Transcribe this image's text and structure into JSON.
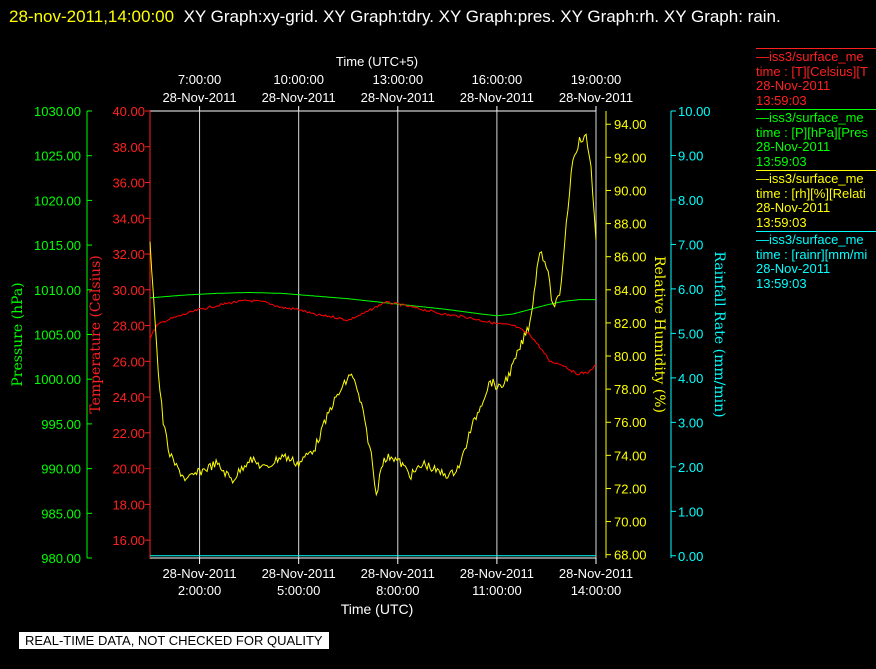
{
  "header": {
    "timestamp": "28-nov-2011,14:00:00",
    "graphs": "XY Graph:xy-grid.  XY Graph:tdry.  XY Graph:pres.  XY Graph:rh.  XY Graph: rain."
  },
  "footer": {
    "quality_note": "REAL-TIME DATA, NOT CHECKED FOR QUALITY"
  },
  "colors": {
    "pressure": "#00ff00",
    "temperature": "#ff0000",
    "humidity": "#ffff00",
    "rainfall": "#00ffff",
    "grid": "#ffffff"
  },
  "legend": [
    {
      "lines": [
        "—iss3/surface_me",
        "time : [T][Celsius][T",
        "28-Nov-2011",
        "13:59:03"
      ],
      "color": "#ff2020"
    },
    {
      "lines": [
        "—iss3/surface_me",
        "time : [P][hPa][Pres",
        "28-Nov-2011",
        "13:59:03"
      ],
      "color": "#00ff00"
    },
    {
      "lines": [
        "—iss3/surface_me",
        "time : [rh][%][Relati",
        "28-Nov-2011",
        "13:59:03"
      ],
      "color": "#ffff00"
    },
    {
      "lines": [
        "—iss3/surface_me",
        "time : [rainr][mm/mi",
        "28-Nov-2011",
        "13:59:03"
      ],
      "color": "#00ffff"
    }
  ],
  "chart_data": {
    "type": "line",
    "xlabel_bottom": "Time (UTC)",
    "xlabel_top": "Time (UTC+5)",
    "xlim_hours_utc": [
      0.5,
      14.0
    ],
    "bottom_ticks": [
      {
        "hour": 2,
        "date": "28-Nov-2011",
        "time": "2:00:00"
      },
      {
        "hour": 5,
        "date": "28-Nov-2011",
        "time": "5:00:00"
      },
      {
        "hour": 8,
        "date": "28-Nov-2011",
        "time": "8:00:00"
      },
      {
        "hour": 11,
        "date": "28-Nov-2011",
        "time": "11:00:00"
      },
      {
        "hour": 14,
        "date": "28-Nov-2011",
        "time": "14:00:00"
      }
    ],
    "top_ticks": [
      {
        "hour": 2,
        "time": "7:00:00",
        "date": "28-Nov-2011"
      },
      {
        "hour": 5,
        "time": "10:00:00",
        "date": "28-Nov-2011"
      },
      {
        "hour": 8,
        "time": "13:00:00",
        "date": "28-Nov-2011"
      },
      {
        "hour": 11,
        "time": "16:00:00",
        "date": "28-Nov-2011"
      },
      {
        "hour": 14,
        "time": "19:00:00",
        "date": "28-Nov-2011"
      }
    ],
    "axes": {
      "pressure": {
        "label": "Pressure (hPa)",
        "ylim": [
          980,
          1030
        ],
        "ticks": [
          "980.00",
          "985.00",
          "990.00",
          "995.00",
          "1000.00",
          "1005.00",
          "1010.00",
          "1015.00",
          "1020.00",
          "1025.00",
          "1030.00"
        ]
      },
      "temperature": {
        "label": "Temperature (Celsius)",
        "ylim": [
          15,
          40
        ],
        "ticks": [
          "16.00",
          "18.00",
          "20.00",
          "22.00",
          "24.00",
          "26.00",
          "28.00",
          "30.00",
          "32.00",
          "34.00",
          "36.00",
          "38.00",
          "40.00"
        ]
      },
      "humidity": {
        "label": "Relative Humidity (%)",
        "ylim": [
          67.8,
          94.8
        ],
        "ticks": [
          "68.00",
          "70.00",
          "72.00",
          "74.00",
          "76.00",
          "78.00",
          "80.00",
          "82.00",
          "84.00",
          "86.00",
          "88.00",
          "90.00",
          "92.00",
          "94.00"
        ]
      },
      "rainfall": {
        "label": "Rainfall Rate (mm/min)",
        "ylim": [
          -0.05,
          10.0
        ],
        "ticks": [
          "0.00",
          "1.00",
          "2.00",
          "3.00",
          "4.00",
          "5.00",
          "6.00",
          "7.00",
          "8.00",
          "9.00",
          "10.00"
        ]
      }
    },
    "series": [
      {
        "name": "Pressure",
        "axis": "pressure",
        "x": [
          0.5,
          1.5,
          2.5,
          3.5,
          4.5,
          5.5,
          6.5,
          7.5,
          8.5,
          9.5,
          10.5,
          11.0,
          11.5,
          12.0,
          12.5,
          13.0,
          13.5,
          14.0
        ],
        "y": [
          1009.1,
          1009.4,
          1009.6,
          1009.7,
          1009.6,
          1009.3,
          1009.0,
          1008.6,
          1008.2,
          1007.8,
          1007.3,
          1007.1,
          1007.3,
          1007.8,
          1008.3,
          1008.7,
          1008.9,
          1008.9
        ]
      },
      {
        "name": "Temperature",
        "axis": "temperature",
        "x": [
          0.5,
          0.7,
          1.0,
          1.5,
          2.0,
          2.5,
          3.0,
          3.5,
          4.0,
          4.5,
          5.0,
          5.5,
          6.0,
          6.5,
          7.0,
          7.3,
          7.6,
          8.0,
          8.5,
          9.0,
          9.5,
          10.0,
          10.5,
          11.0,
          11.5,
          12.0,
          12.3,
          12.6,
          13.0,
          13.4,
          13.8,
          14.0
        ],
        "y": [
          27.3,
          28.0,
          28.3,
          28.6,
          28.9,
          29.1,
          29.3,
          29.4,
          29.3,
          29.0,
          28.9,
          28.6,
          28.5,
          28.3,
          28.7,
          29.0,
          29.3,
          29.2,
          29.0,
          28.8,
          28.6,
          28.5,
          28.3,
          28.1,
          28.0,
          27.5,
          26.8,
          26.0,
          25.8,
          25.3,
          25.4,
          25.8
        ]
      },
      {
        "name": "Relative Humidity",
        "axis": "humidity",
        "x": [
          0.5,
          0.6,
          0.75,
          0.9,
          1.1,
          1.3,
          1.6,
          2.0,
          2.5,
          3.0,
          3.5,
          4.0,
          4.5,
          5.0,
          5.5,
          6.0,
          6.3,
          6.6,
          6.9,
          7.1,
          7.2,
          7.35,
          7.5,
          7.8,
          8.1,
          8.4,
          8.8,
          9.2,
          9.6,
          9.9,
          10.2,
          10.5,
          10.8,
          11.1,
          11.4,
          11.7,
          12.0,
          12.3,
          12.5,
          12.7,
          12.9,
          13.1,
          13.3,
          13.5,
          13.7,
          13.85,
          14.0
        ],
        "y": [
          86.7,
          84.0,
          79.0,
          76.0,
          74.0,
          73.3,
          72.5,
          73.0,
          73.5,
          72.5,
          73.8,
          73.2,
          74.0,
          73.5,
          74.5,
          77.0,
          78.0,
          79.0,
          77.0,
          75.0,
          74.0,
          71.5,
          73.5,
          74.0,
          73.5,
          72.8,
          73.5,
          73.0,
          72.8,
          73.5,
          75.5,
          77.0,
          78.5,
          78.0,
          79.0,
          80.5,
          82.0,
          86.5,
          85.5,
          83.0,
          83.5,
          88.0,
          92.0,
          93.0,
          93.2,
          91.5,
          87.0
        ]
      },
      {
        "name": "Rainfall Rate",
        "axis": "rainfall",
        "x": [
          0.5,
          14.0
        ],
        "y": [
          0.0,
          0.0
        ]
      }
    ]
  }
}
